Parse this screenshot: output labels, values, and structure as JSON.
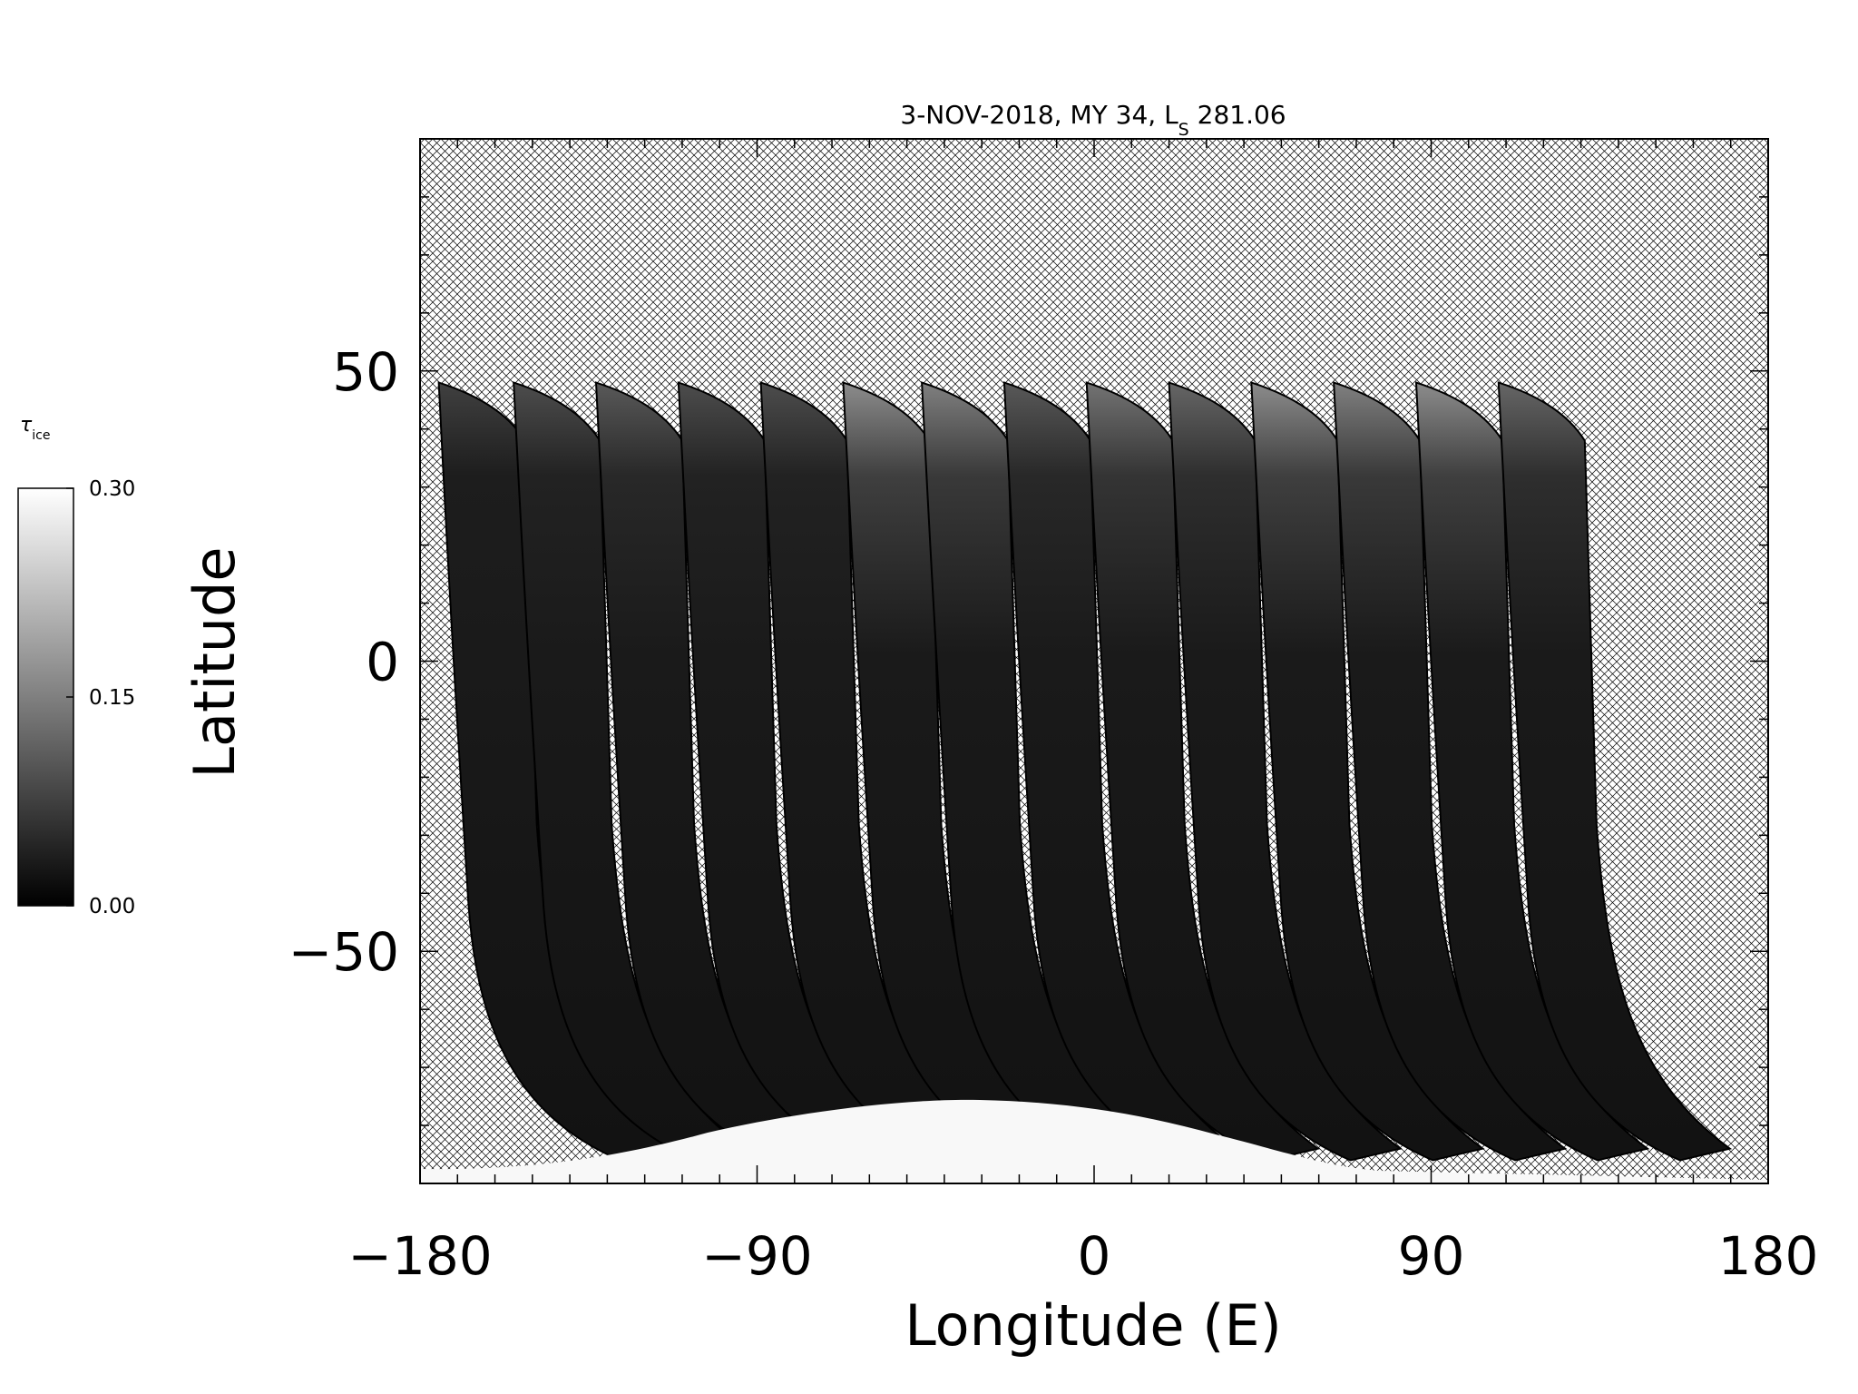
{
  "chart_data": {
    "type": "heatmap",
    "title": {
      "main": "3-NOV-2018, MY 34,  L",
      "sub": "S",
      "value": " 281.06"
    },
    "xlabel": "Longitude (E)",
    "ylabel": "Latitude",
    "xlim": [
      -180,
      180
    ],
    "ylim": [
      -90,
      90
    ],
    "xticks": [
      -180,
      -90,
      0,
      90,
      180
    ],
    "xtick_labels": [
      "−180",
      "−90",
      "0",
      "90",
      "180"
    ],
    "yticks": [
      -50,
      0,
      50
    ],
    "ytick_labels": [
      "−50",
      "0",
      "50"
    ],
    "x_minor_step": 10,
    "y_minor_step": 10,
    "no_data_pattern": "crosshatch",
    "colorbar": {
      "label_main": "τ",
      "label_sub": "ice",
      "min": 0.0,
      "max": 0.3,
      "ticks": [
        0.0,
        0.15,
        0.3
      ],
      "tick_labels": [
        "0.00",
        "0.15",
        "0.30"
      ],
      "colors": [
        "#000000",
        "#ffffff"
      ]
    },
    "swath_count": 14,
    "swath_longitudes_top": [
      -175,
      -155,
      -133,
      -111,
      -89,
      -67,
      -46,
      -24,
      -2,
      20,
      42,
      64,
      86,
      108
    ],
    "swath_highlights": [
      0.25,
      0.3,
      0.35,
      0.3,
      0.3,
      0.55,
      0.5,
      0.35,
      0.45,
      0.4,
      0.55,
      0.5,
      0.55,
      0.4
    ],
    "south_polar_cloud_tau": 0.3
  }
}
